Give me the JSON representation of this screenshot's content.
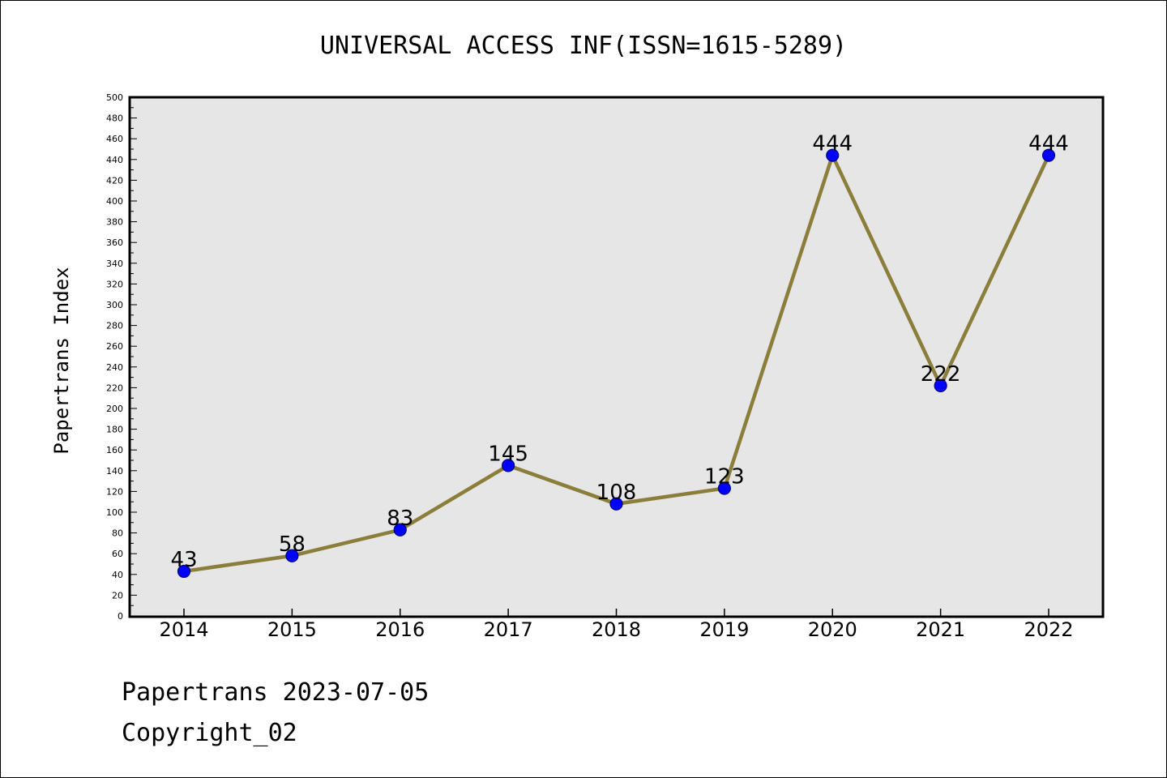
{
  "chart_data": {
    "type": "line",
    "title": "UNIVERSAL ACCESS INF(ISSN=1615-5289)",
    "xlabel": "",
    "ylabel": "Papertrans Index",
    "categories": [
      "2014",
      "2015",
      "2016",
      "2017",
      "2018",
      "2019",
      "2020",
      "2021",
      "2022"
    ],
    "series": [
      {
        "values": [
          43,
          58,
          83,
          145,
          108,
          123,
          444,
          222,
          444
        ]
      }
    ],
    "ylim": [
      0,
      500
    ],
    "ytick_step": 20,
    "yticks": [
      "0",
      "20",
      "40",
      "60",
      "80",
      "100",
      "120",
      "140",
      "160",
      "180",
      "200",
      "220",
      "240",
      "260",
      "280",
      "300",
      "320",
      "340",
      "360",
      "380",
      "400",
      "420",
      "440",
      "460",
      "480",
      "500"
    ],
    "grid": false,
    "plot_background": "#e6e6e6",
    "line_color": "#8b7d3a",
    "marker_color": "#0000ff",
    "marker_edge_color": "#000080"
  },
  "footer": {
    "date_line": "Papertrans 2023-07-05",
    "copyright_line": "Copyright_02"
  }
}
